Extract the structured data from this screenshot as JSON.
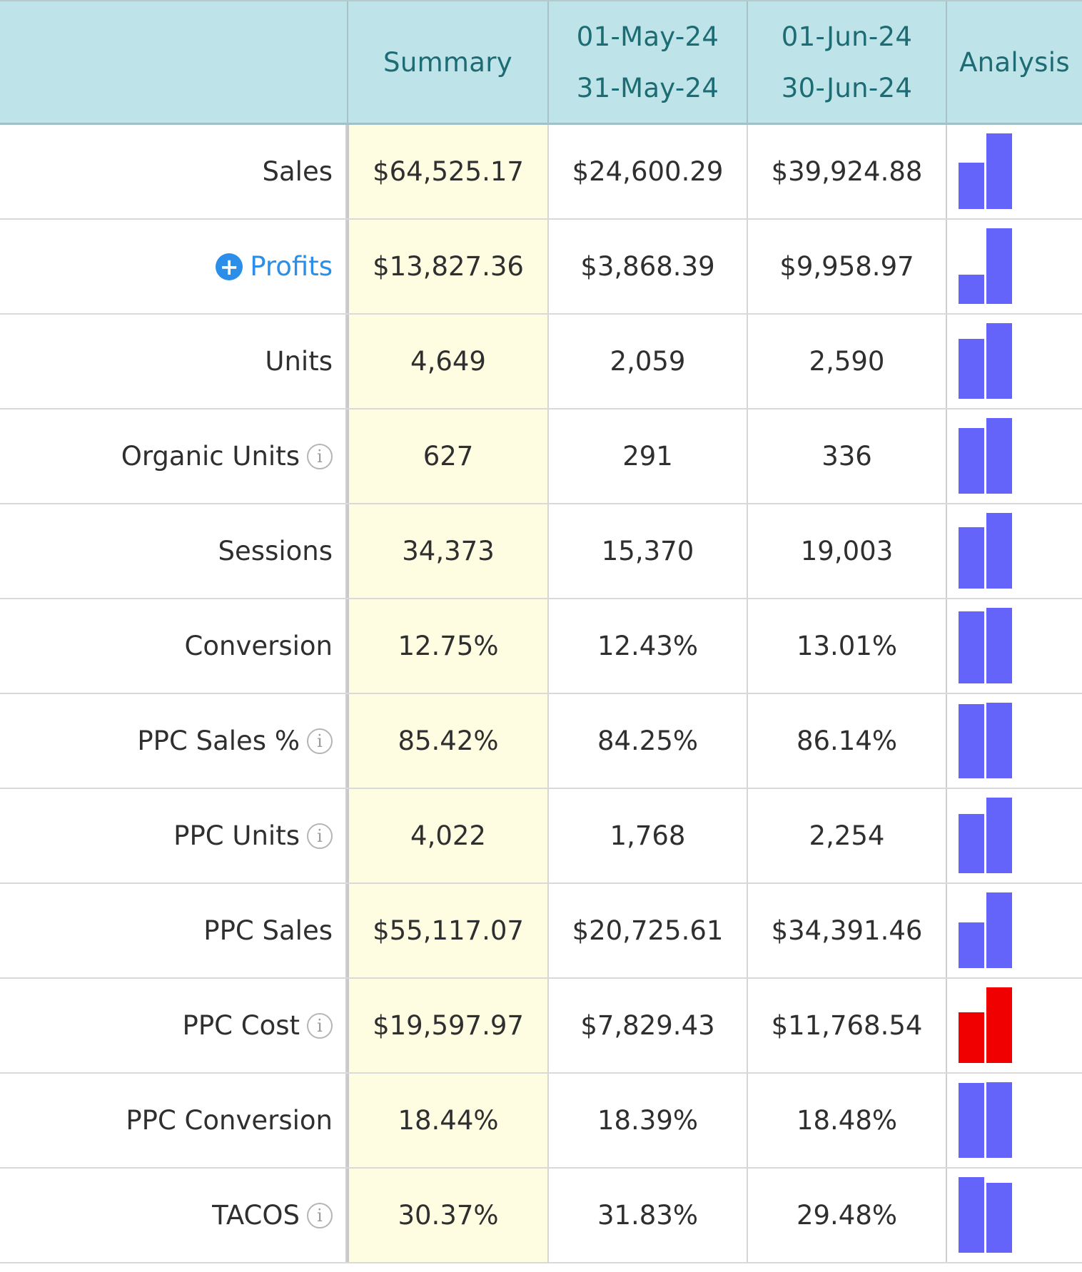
{
  "header": {
    "summary_label": "Summary",
    "periods": [
      {
        "start": "01-May-24",
        "end": "31-May-24"
      },
      {
        "start": "01-Jun-24",
        "end": "30-Jun-24"
      }
    ],
    "analysis_label": "Analysis"
  },
  "colors": {
    "bar_default": "#6464fa",
    "bar_cost": "#f00000",
    "header_bg": "#bee3e8",
    "summary_bg": "#fefde2",
    "link": "#2b8ee8"
  },
  "rows": [
    {
      "label": "Sales",
      "info": false,
      "expand": false,
      "summary": "$64,525.17",
      "p1": "$24,600.29",
      "p2": "$39,924.88",
      "v1": 24600.29,
      "v2": 39924.88,
      "bar_color": "#6464fa"
    },
    {
      "label": "Profits",
      "info": false,
      "expand": true,
      "summary": "$13,827.36",
      "p1": "$3,868.39",
      "p2": "$9,958.97",
      "v1": 3868.39,
      "v2": 9958.97,
      "bar_color": "#6464fa"
    },
    {
      "label": "Units",
      "info": false,
      "expand": false,
      "summary": "4,649",
      "p1": "2,059",
      "p2": "2,590",
      "v1": 2059,
      "v2": 2590,
      "bar_color": "#6464fa"
    },
    {
      "label": "Organic Units",
      "info": true,
      "expand": false,
      "summary": "627",
      "p1": "291",
      "p2": "336",
      "v1": 291,
      "v2": 336,
      "bar_color": "#6464fa"
    },
    {
      "label": "Sessions",
      "info": false,
      "expand": false,
      "summary": "34,373",
      "p1": "15,370",
      "p2": "19,003",
      "v1": 15370,
      "v2": 19003,
      "bar_color": "#6464fa"
    },
    {
      "label": "Conversion",
      "info": false,
      "expand": false,
      "summary": "12.75%",
      "p1": "12.43%",
      "p2": "13.01%",
      "v1": 12.43,
      "v2": 13.01,
      "bar_color": "#6464fa"
    },
    {
      "label": "PPC Sales %",
      "info": true,
      "expand": false,
      "summary": "85.42%",
      "p1": "84.25%",
      "p2": "86.14%",
      "v1": 84.25,
      "v2": 86.14,
      "bar_color": "#6464fa"
    },
    {
      "label": "PPC Units",
      "info": true,
      "expand": false,
      "summary": "4,022",
      "p1": "1,768",
      "p2": "2,254",
      "v1": 1768,
      "v2": 2254,
      "bar_color": "#6464fa"
    },
    {
      "label": "PPC Sales",
      "info": false,
      "expand": false,
      "summary": "$55,117.07",
      "p1": "$20,725.61",
      "p2": "$34,391.46",
      "v1": 20725.61,
      "v2": 34391.46,
      "bar_color": "#6464fa"
    },
    {
      "label": "PPC Cost",
      "info": true,
      "expand": false,
      "summary": "$19,597.97",
      "p1": "$7,829.43",
      "p2": "$11,768.54",
      "v1": 7829.43,
      "v2": 11768.54,
      "bar_color": "#f00000"
    },
    {
      "label": "PPC Conversion",
      "info": false,
      "expand": false,
      "summary": "18.44%",
      "p1": "18.39%",
      "p2": "18.48%",
      "v1": 18.39,
      "v2": 18.48,
      "bar_color": "#6464fa"
    },
    {
      "label": "TACOS",
      "info": true,
      "expand": false,
      "summary": "30.37%",
      "p1": "31.83%",
      "p2": "29.48%",
      "v1": 31.83,
      "v2": 29.48,
      "bar_color": "#6464fa"
    }
  ]
}
